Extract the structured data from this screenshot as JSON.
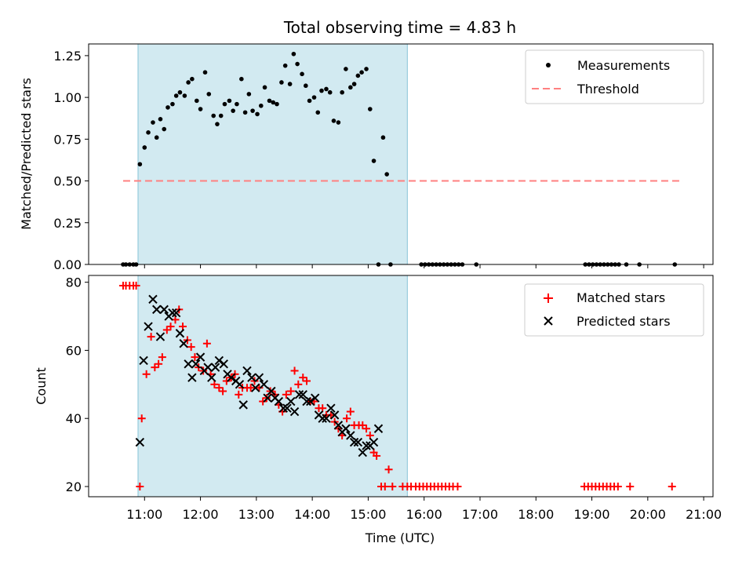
{
  "figure": {
    "title": "Total observing time = 4.83 h",
    "xlabel": "Time (UTC)"
  },
  "colors": {
    "shade": "#add8e6",
    "threshold": "#ff8080",
    "measurement": "#000000",
    "matched": "#ff0000",
    "predicted": "#000000"
  },
  "chart_data": [
    {
      "type": "scatter",
      "ylabel": "Matched/Predicted stars",
      "xlim": [
        "10:00",
        "21:10"
      ],
      "ylim": [
        0,
        1.32
      ],
      "xticks": [
        "11:00",
        "12:00",
        "13:00",
        "14:00",
        "15:00",
        "16:00",
        "17:00",
        "18:00",
        "19:00",
        "20:00",
        "21:00"
      ],
      "yticks": [
        "0.00",
        "0.25",
        "0.50",
        "0.75",
        "1.00",
        "1.25"
      ],
      "shaded_span": {
        "start": "10:53",
        "end": "15:42"
      },
      "threshold": {
        "name": "Threshold",
        "value": 0.5,
        "from": "10:37",
        "to": "20:38"
      },
      "series": [
        {
          "name": "Measurements",
          "points": [
            [
              "10:37",
              0
            ],
            [
              "10:40",
              0
            ],
            [
              "10:44",
              0
            ],
            [
              "10:48",
              0
            ],
            [
              "10:51",
              0
            ],
            [
              "10:55",
              0.6
            ],
            [
              "11:00",
              0.7
            ],
            [
              "11:04",
              0.79
            ],
            [
              "11:09",
              0.85
            ],
            [
              "11:13",
              0.76
            ],
            [
              "11:17",
              0.87
            ],
            [
              "11:21",
              0.81
            ],
            [
              "11:25",
              0.94
            ],
            [
              "11:30",
              0.96
            ],
            [
              "11:34",
              1.01
            ],
            [
              "11:38",
              1.03
            ],
            [
              "11:43",
              1.01
            ],
            [
              "11:47",
              1.09
            ],
            [
              "11:51",
              1.11
            ],
            [
              "11:56",
              0.98
            ],
            [
              "12:00",
              0.93
            ],
            [
              "12:05",
              1.15
            ],
            [
              "12:09",
              1.02
            ],
            [
              "12:14",
              0.89
            ],
            [
              "12:18",
              0.84
            ],
            [
              "12:22",
              0.89
            ],
            [
              "12:26",
              0.96
            ],
            [
              "12:31",
              0.98
            ],
            [
              "12:35",
              0.92
            ],
            [
              "12:39",
              0.96
            ],
            [
              "12:44",
              1.11
            ],
            [
              "12:48",
              0.91
            ],
            [
              "12:52",
              1.02
            ],
            [
              "12:56",
              0.92
            ],
            [
              "13:01",
              0.9
            ],
            [
              "13:05",
              0.95
            ],
            [
              "13:09",
              1.06
            ],
            [
              "13:14",
              0.98
            ],
            [
              "13:18",
              0.97
            ],
            [
              "13:22",
              0.96
            ],
            [
              "13:27",
              1.09
            ],
            [
              "13:31",
              1.19
            ],
            [
              "13:36",
              1.08
            ],
            [
              "13:40",
              1.26
            ],
            [
              "13:44",
              1.2
            ],
            [
              "13:49",
              1.14
            ],
            [
              "13:53",
              1.07
            ],
            [
              "13:57",
              0.98
            ],
            [
              "14:02",
              1.0
            ],
            [
              "14:06",
              0.91
            ],
            [
              "14:10",
              1.04
            ],
            [
              "14:15",
              1.05
            ],
            [
              "14:19",
              1.03
            ],
            [
              "14:23",
              0.86
            ],
            [
              "14:28",
              0.85
            ],
            [
              "14:32",
              1.03
            ],
            [
              "14:36",
              1.17
            ],
            [
              "14:41",
              1.06
            ],
            [
              "14:45",
              1.08
            ],
            [
              "14:49",
              1.13
            ],
            [
              "14:53",
              1.15
            ],
            [
              "14:58",
              1.17
            ],
            [
              "15:02",
              0.93
            ],
            [
              "15:06",
              0.62
            ],
            [
              "15:11",
              0
            ],
            [
              "15:16",
              0.76
            ],
            [
              "15:20",
              0.54
            ],
            [
              "15:24",
              0
            ],
            [
              "15:57",
              0
            ],
            [
              "16:01",
              0
            ],
            [
              "16:05",
              0
            ],
            [
              "16:09",
              0
            ],
            [
              "16:13",
              0
            ],
            [
              "16:17",
              0
            ],
            [
              "16:21",
              0
            ],
            [
              "16:25",
              0
            ],
            [
              "16:29",
              0
            ],
            [
              "16:33",
              0
            ],
            [
              "16:37",
              0
            ],
            [
              "16:41",
              0
            ],
            [
              "16:56",
              0
            ],
            [
              "18:53",
              0
            ],
            [
              "18:57",
              0
            ],
            [
              "19:01",
              0
            ],
            [
              "19:05",
              0
            ],
            [
              "19:09",
              0
            ],
            [
              "19:13",
              0
            ],
            [
              "19:17",
              0
            ],
            [
              "19:21",
              0
            ],
            [
              "19:25",
              0
            ],
            [
              "19:29",
              0
            ],
            [
              "19:37",
              0
            ],
            [
              "19:51",
              0
            ],
            [
              "20:29",
              0
            ]
          ]
        }
      ]
    },
    {
      "type": "scatter",
      "ylabel": "Count",
      "xlim": [
        "10:00",
        "21:10"
      ],
      "ylim": [
        17,
        82
      ],
      "xticks": [
        "11:00",
        "12:00",
        "13:00",
        "14:00",
        "15:00",
        "16:00",
        "17:00",
        "18:00",
        "19:00",
        "20:00",
        "21:00"
      ],
      "yticks": [
        "20",
        "40",
        "60",
        "80"
      ],
      "shaded_span": {
        "start": "10:53",
        "end": "15:42"
      },
      "series": [
        {
          "name": "Matched stars",
          "points": [
            [
              "10:37",
              79
            ],
            [
              "10:40",
              79
            ],
            [
              "10:44",
              79
            ],
            [
              "10:48",
              79
            ],
            [
              "10:51",
              79
            ],
            [
              "10:55",
              20
            ],
            [
              "10:57",
              40
            ],
            [
              "11:02",
              53
            ],
            [
              "11:07",
              64
            ],
            [
              "11:11",
              55
            ],
            [
              "11:15",
              56
            ],
            [
              "11:19",
              58
            ],
            [
              "11:24",
              66
            ],
            [
              "11:28",
              67
            ],
            [
              "11:33",
              69
            ],
            [
              "11:37",
              72
            ],
            [
              "11:41",
              67
            ],
            [
              "11:46",
              63
            ],
            [
              "11:50",
              61
            ],
            [
              "11:54",
              58
            ],
            [
              "11:58",
              55
            ],
            [
              "12:03",
              54
            ],
            [
              "12:07",
              62
            ],
            [
              "12:11",
              53
            ],
            [
              "12:15",
              50
            ],
            [
              "12:20",
              49
            ],
            [
              "12:24",
              48
            ],
            [
              "12:28",
              51
            ],
            [
              "12:33",
              52
            ],
            [
              "12:37",
              53
            ],
            [
              "12:41",
              47
            ],
            [
              "12:45",
              49
            ],
            [
              "12:50",
              49
            ],
            [
              "12:54",
              49
            ],
            [
              "12:58",
              51
            ],
            [
              "13:03",
              49
            ],
            [
              "13:07",
              45
            ],
            [
              "13:11",
              46
            ],
            [
              "13:15",
              48
            ],
            [
              "13:20",
              47
            ],
            [
              "13:24",
              44
            ],
            [
              "13:28",
              42
            ],
            [
              "13:32",
              47
            ],
            [
              "13:37",
              48
            ],
            [
              "13:41",
              54
            ],
            [
              "13:45",
              50
            ],
            [
              "13:50",
              52
            ],
            [
              "13:54",
              51
            ],
            [
              "13:58",
              45
            ],
            [
              "14:02",
              45
            ],
            [
              "14:07",
              43
            ],
            [
              "14:11",
              43
            ],
            [
              "14:15",
              41
            ],
            [
              "14:20",
              41
            ],
            [
              "14:24",
              39
            ],
            [
              "14:28",
              37
            ],
            [
              "14:32",
              35
            ],
            [
              "14:37",
              40
            ],
            [
              "14:41",
              42
            ],
            [
              "14:45",
              38
            ],
            [
              "14:50",
              38
            ],
            [
              "14:54",
              38
            ],
            [
              "14:58",
              37
            ],
            [
              "15:02",
              35
            ],
            [
              "15:06",
              30
            ],
            [
              "15:09",
              29
            ],
            [
              "15:14",
              20
            ],
            [
              "15:18",
              20
            ],
            [
              "15:22",
              25
            ],
            [
              "15:26",
              20
            ],
            [
              "15:37",
              20
            ],
            [
              "15:42",
              20
            ],
            [
              "15:46",
              20
            ],
            [
              "15:51",
              20
            ],
            [
              "15:55",
              20
            ],
            [
              "15:59",
              20
            ],
            [
              "16:03",
              20
            ],
            [
              "16:07",
              20
            ],
            [
              "16:11",
              20
            ],
            [
              "16:15",
              20
            ],
            [
              "16:19",
              20
            ],
            [
              "16:23",
              20
            ],
            [
              "16:27",
              20
            ],
            [
              "16:31",
              20
            ],
            [
              "16:36",
              20
            ],
            [
              "18:52",
              20
            ],
            [
              "18:56",
              20
            ],
            [
              "19:00",
              20
            ],
            [
              "19:04",
              20
            ],
            [
              "19:08",
              20
            ],
            [
              "19:12",
              20
            ],
            [
              "19:16",
              20
            ],
            [
              "19:20",
              20
            ],
            [
              "19:24",
              20
            ],
            [
              "19:28",
              20
            ],
            [
              "19:41",
              20
            ],
            [
              "20:26",
              20
            ]
          ]
        },
        {
          "name": "Predicted stars",
          "points": [
            [
              "10:55",
              33
            ],
            [
              "10:59",
              57
            ],
            [
              "11:04",
              67
            ],
            [
              "11:09",
              75
            ],
            [
              "11:13",
              72
            ],
            [
              "11:17",
              64
            ],
            [
              "11:21",
              72
            ],
            [
              "11:26",
              70
            ],
            [
              "11:30",
              71
            ],
            [
              "11:34",
              71
            ],
            [
              "11:38",
              65
            ],
            [
              "11:42",
              62
            ],
            [
              "11:47",
              56
            ],
            [
              "11:51",
              52
            ],
            [
              "11:55",
              56
            ],
            [
              "12:00",
              58
            ],
            [
              "12:04",
              54
            ],
            [
              "12:08",
              55
            ],
            [
              "12:12",
              52
            ],
            [
              "12:16",
              55
            ],
            [
              "12:20",
              57
            ],
            [
              "12:25",
              56
            ],
            [
              "12:29",
              53
            ],
            [
              "12:33",
              52
            ],
            [
              "12:38",
              51
            ],
            [
              "12:42",
              50
            ],
            [
              "12:46",
              44
            ],
            [
              "12:50",
              54
            ],
            [
              "12:55",
              52
            ],
            [
              "12:59",
              49
            ],
            [
              "13:03",
              52
            ],
            [
              "13:08",
              50
            ],
            [
              "13:12",
              46
            ],
            [
              "13:16",
              48
            ],
            [
              "13:20",
              46
            ],
            [
              "13:24",
              45
            ],
            [
              "13:29",
              43
            ],
            [
              "13:33",
              43
            ],
            [
              "13:37",
              45
            ],
            [
              "13:41",
              42
            ],
            [
              "13:46",
              47
            ],
            [
              "13:50",
              47
            ],
            [
              "13:54",
              45
            ],
            [
              "13:58",
              45
            ],
            [
              "14:03",
              46
            ],
            [
              "14:07",
              41
            ],
            [
              "14:11",
              40
            ],
            [
              "14:15",
              40
            ],
            [
              "14:20",
              43
            ],
            [
              "14:24",
              41
            ],
            [
              "14:28",
              38
            ],
            [
              "14:32",
              36
            ],
            [
              "14:36",
              37
            ],
            [
              "14:41",
              35
            ],
            [
              "14:45",
              33
            ],
            [
              "14:49",
              33
            ],
            [
              "14:54",
              30
            ],
            [
              "14:58",
              32
            ],
            [
              "15:02",
              32
            ],
            [
              "15:06",
              33
            ],
            [
              "15:11",
              37
            ]
          ]
        }
      ]
    }
  ]
}
